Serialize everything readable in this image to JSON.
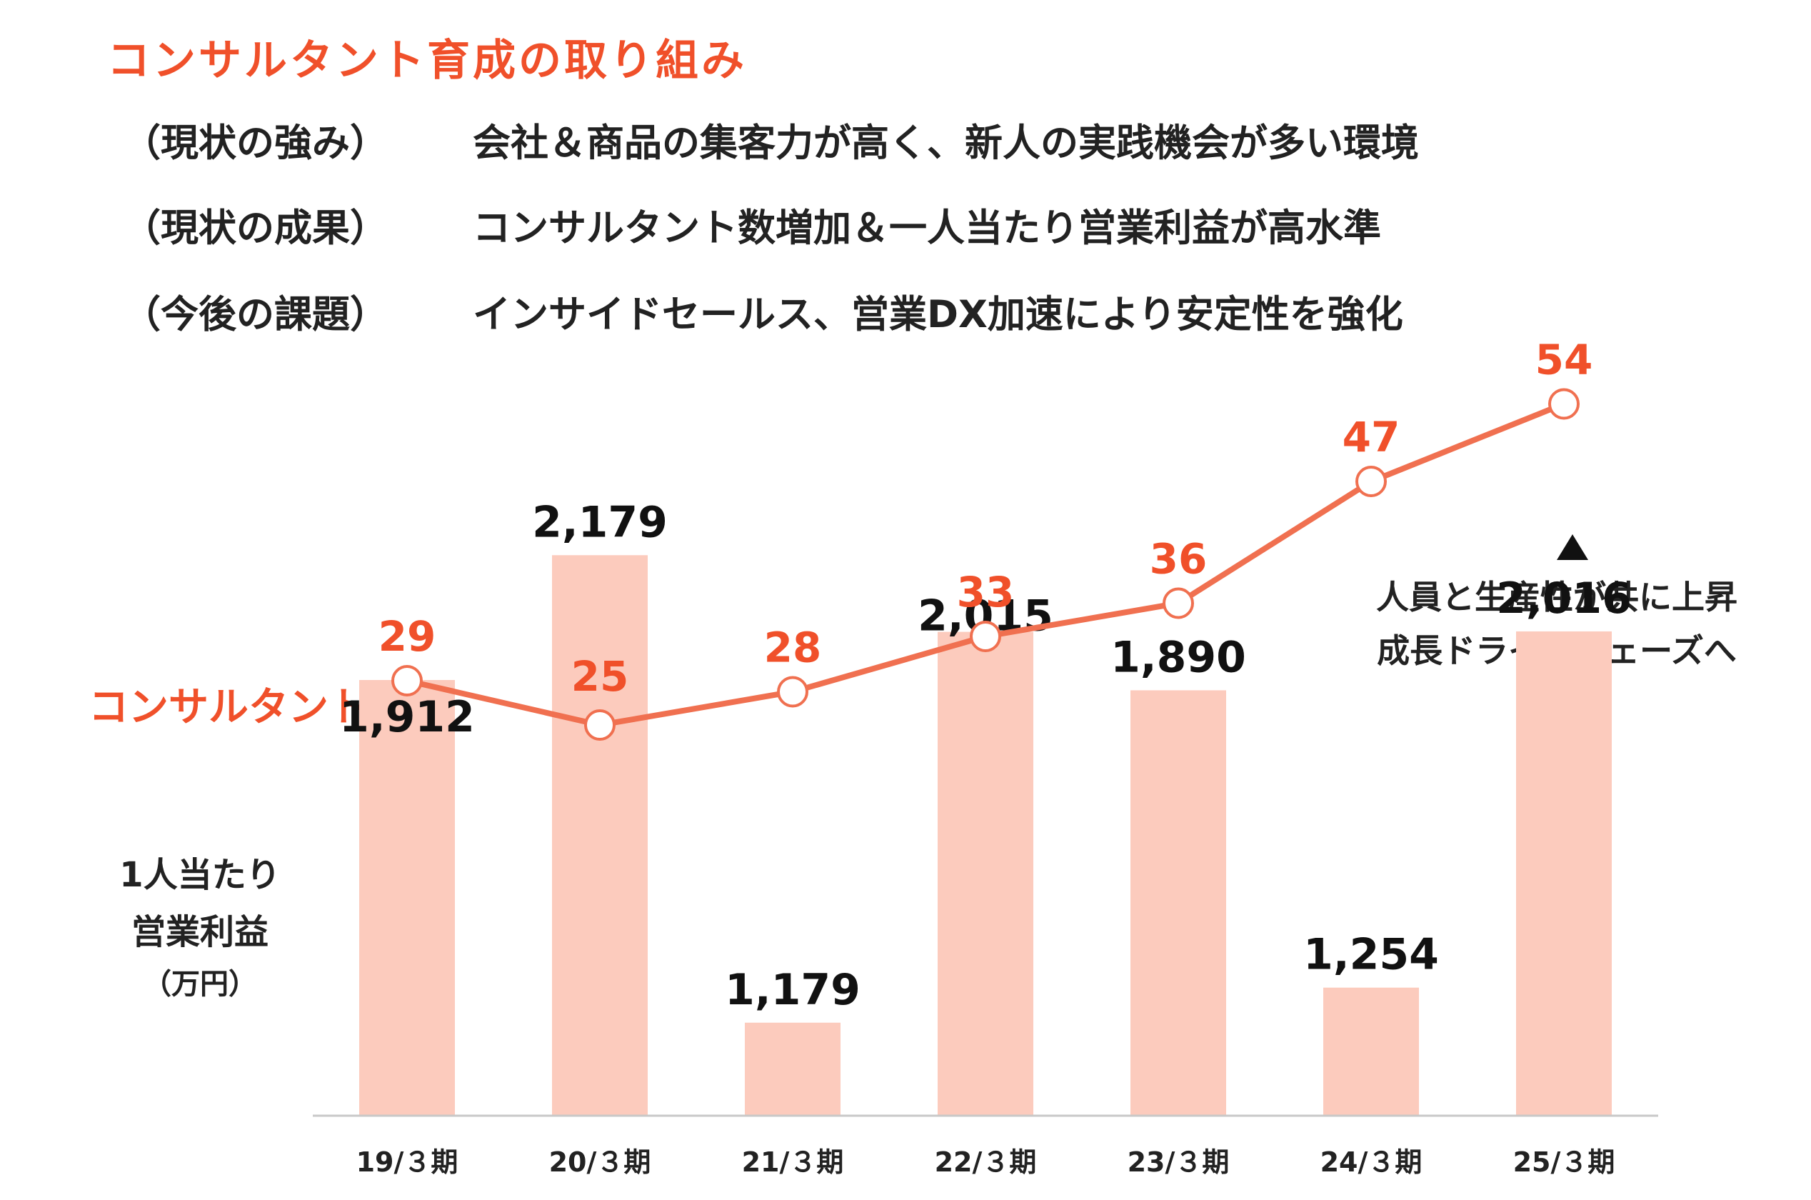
{
  "title": "コンサルタント育成の取り組み",
  "summary": [
    {
      "label": "（現状の強み）",
      "text": "会社＆商品の集客力が高く、新人の実践機会が多い環境"
    },
    {
      "label": "（現状の成果）",
      "text": "コンサルタント数増加＆一人当たり営業利益が高水準"
    },
    {
      "label": "（今後の課題）",
      "text": "インサイドセールス、営業DX加速により安定性を強化"
    }
  ],
  "colors": {
    "accent": "#F0502A",
    "line": "#F07050",
    "bar": "#FCCBBD",
    "text": "#222222"
  },
  "chart_data": {
    "type": "bar+line",
    "categories": [
      "19/３期",
      "20/３期",
      "21/３期",
      "22/３期",
      "23/３期",
      "24/３期",
      "25/３期"
    ],
    "series": [
      {
        "name": "1人当たり営業利益（万円）",
        "type": "bar",
        "values": [
          1912,
          2179,
          1179,
          2015,
          1890,
          1254,
          2016
        ],
        "labels": [
          "1,912",
          "2,179",
          "1,179",
          "2,015",
          "1,890",
          "1,254",
          "2,016"
        ]
      },
      {
        "name": "コンサルタント数",
        "type": "line",
        "values": [
          29,
          25,
          28,
          33,
          36,
          47,
          54
        ],
        "labels": [
          "29",
          "25",
          "28",
          "33",
          "36",
          "47",
          "54"
        ]
      }
    ],
    "bar_axis_label": {
      "line1": "1人当たり",
      "line2": "営業利益",
      "unit": "（万円）"
    },
    "line_series_label": "コンサルタント数",
    "annotation": {
      "line1": "人員と生産性が共に上昇",
      "line2": "成長ドライブフェーズへ"
    }
  }
}
